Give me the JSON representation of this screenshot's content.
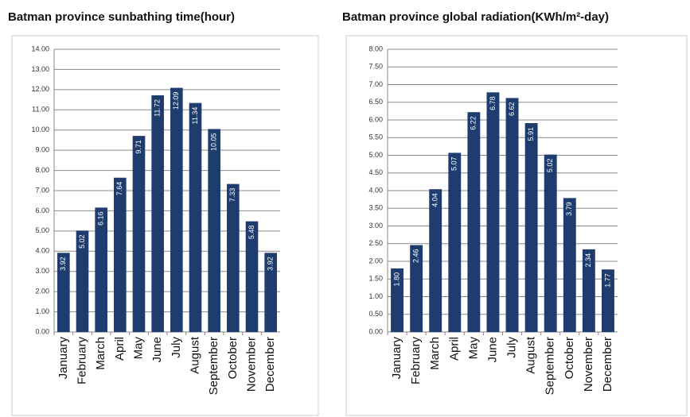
{
  "chart_data": [
    {
      "type": "bar",
      "title": "Batman province sunbathing time(hour)",
      "categories": [
        "January",
        "February",
        "March",
        "April",
        "May",
        "June",
        "July",
        "August",
        "September",
        "October",
        "November",
        "December"
      ],
      "values": [
        3.92,
        5.02,
        6.16,
        7.64,
        9.71,
        11.72,
        12.09,
        11.34,
        10.05,
        7.33,
        5.48,
        3.92
      ],
      "color": "#1f3c6e",
      "ylim": [
        0,
        14
      ],
      "yticks": [
        {
          "value": 0,
          "label": "0.00"
        },
        {
          "value": 1,
          "label": "1.00"
        },
        {
          "value": 2,
          "label": "2.00"
        },
        {
          "value": 3,
          "label": "3.00"
        },
        {
          "value": 4,
          "label": "4.00"
        },
        {
          "value": 5,
          "label": "5.00"
        },
        {
          "value": 6,
          "label": "6.00"
        },
        {
          "value": 7,
          "label": "7.00"
        },
        {
          "value": 8,
          "label": "8.00"
        },
        {
          "value": 9,
          "label": "9.00"
        },
        {
          "value": 10,
          "label": "10.00"
        },
        {
          "value": 11,
          "label": "11.00"
        },
        {
          "value": 12,
          "label": "12.00"
        },
        {
          "value": 13,
          "label": "13.00"
        },
        {
          "value": 14,
          "label": "14.00"
        }
      ],
      "grid": true
    },
    {
      "type": "bar",
      "title": "Batman province global radiation(KWh/m²-day)",
      "categories": [
        "January",
        "February",
        "March",
        "April",
        "May",
        "June",
        "July",
        "August",
        "September",
        "October",
        "November",
        "December"
      ],
      "values": [
        1.8,
        2.46,
        4.04,
        5.07,
        6.22,
        6.78,
        6.62,
        5.91,
        5.02,
        3.79,
        2.34,
        1.77
      ],
      "value_labels": [
        "1.80",
        "2.46",
        "4.04",
        "5.07",
        "6.22",
        "6.78",
        "6.62",
        "5.91",
        "5.02",
        "3.79",
        "2.34",
        "1.77"
      ],
      "color": "#1f3c6e",
      "ylim": [
        0,
        8
      ],
      "yticks": [
        {
          "value": 0,
          "label": "0.00"
        },
        {
          "value": 0.5,
          "label": "0.50"
        },
        {
          "value": 1,
          "label": "1.00"
        },
        {
          "value": 1.5,
          "label": "1.50"
        },
        {
          "value": 2,
          "label": "2.00"
        },
        {
          "value": 2.5,
          "label": "2.50"
        },
        {
          "value": 3,
          "label": "3.00"
        },
        {
          "value": 3.5,
          "label": "3.50"
        },
        {
          "value": 4,
          "label": "4.00"
        },
        {
          "value": 4.5,
          "label": "4.50"
        },
        {
          "value": 5,
          "label": "5.00"
        },
        {
          "value": 5.5,
          "label": "5.50"
        },
        {
          "value": 6,
          "label": "6.00"
        },
        {
          "value": 6.5,
          "label": "6.50"
        },
        {
          "value": 7,
          "label": "7.00"
        },
        {
          "value": 7.5,
          "label": "7.50"
        },
        {
          "value": 8,
          "label": "8.00"
        }
      ],
      "grid": true
    }
  ]
}
